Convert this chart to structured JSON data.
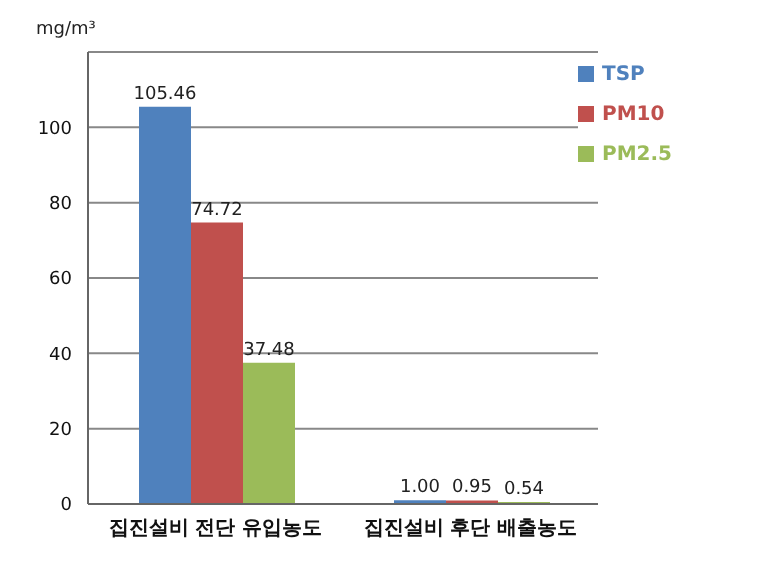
{
  "chart_data": {
    "type": "bar",
    "ylabel": "mg/m³",
    "categories": [
      "집진설비 전단 유입농도",
      "집진설비 후단 배출농도"
    ],
    "series": [
      {
        "name": "TSP",
        "color": "#4f81bd",
        "values": [
          105.46,
          1.0
        ],
        "value_labels": [
          "105.46",
          "1.00"
        ]
      },
      {
        "name": "PM10",
        "color": "#c0504d",
        "values": [
          74.72,
          0.95
        ],
        "value_labels": [
          "74.72",
          "0.95"
        ]
      },
      {
        "name": "PM2.5",
        "color": "#9bbb59",
        "values": [
          37.48,
          0.54
        ],
        "value_labels": [
          "37.48",
          "0.54"
        ]
      }
    ],
    "ylim": [
      0,
      120
    ],
    "yticks": [
      0,
      20,
      40,
      60,
      80,
      100
    ],
    "grid": "y",
    "legend": "top right"
  }
}
